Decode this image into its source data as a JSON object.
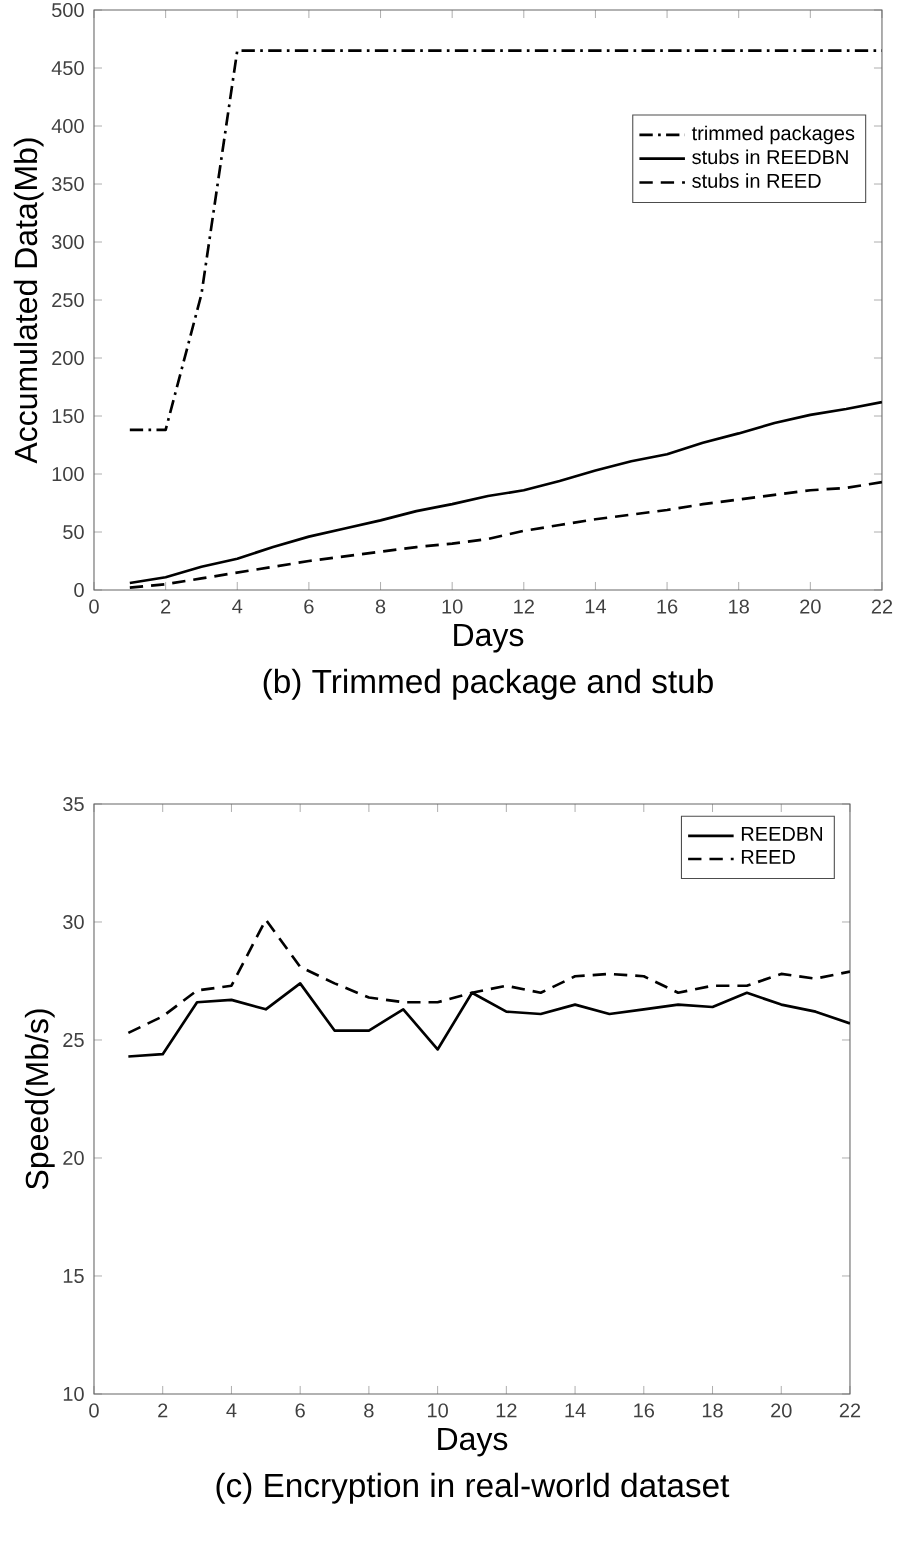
{
  "chart_data": [
    {
      "type": "line",
      "title": "(b) Trimmed package and stub",
      "xlabel": "Days",
      "ylabel": "Accumulated Data(Mb)",
      "x": [
        1,
        2,
        3,
        4,
        5,
        6,
        7,
        8,
        9,
        10,
        11,
        12,
        13,
        14,
        15,
        16,
        17,
        18,
        19,
        20,
        21,
        22
      ],
      "xlim": [
        0,
        22
      ],
      "xticks": [
        0,
        2,
        4,
        6,
        8,
        10,
        12,
        14,
        16,
        18,
        20,
        22
      ],
      "ylim": [
        0,
        500
      ],
      "yticks": [
        0,
        50,
        100,
        150,
        200,
        250,
        300,
        350,
        400,
        450,
        500
      ],
      "legend": "top right",
      "series": [
        {
          "name": "trimmed packages",
          "color": "#000000",
          "line_style": "dashdot",
          "values": [
            138,
            138,
            255,
            465,
            465,
            465,
            465,
            465,
            465,
            465,
            465,
            465,
            465,
            465,
            465,
            465,
            465,
            465,
            465,
            465,
            465,
            465
          ]
        },
        {
          "name": "stubs in REEDBN",
          "color": "#000000",
          "line_style": "solid",
          "values": [
            6,
            11,
            20,
            27,
            37,
            46,
            53,
            60,
            68,
            74,
            81,
            86,
            94,
            103,
            111,
            117,
            127,
            135,
            144,
            151,
            156,
            162
          ]
        },
        {
          "name": "stubs in REED",
          "color": "#000000",
          "line_style": "dashed",
          "values": [
            2,
            5,
            10,
            15,
            20,
            25,
            29,
            33,
            37,
            40,
            44,
            51,
            56,
            61,
            65,
            69,
            74,
            78,
            82,
            86,
            88,
            93
          ]
        }
      ]
    },
    {
      "type": "line",
      "title": "(c)  Encryption in real-world dataset",
      "xlabel": "Days",
      "ylabel": "Speed(Mb/s)",
      "x": [
        1,
        2,
        3,
        4,
        5,
        6,
        7,
        8,
        9,
        10,
        11,
        12,
        13,
        14,
        15,
        16,
        17,
        18,
        19,
        20,
        21,
        22
      ],
      "xlim": [
        0,
        22
      ],
      "xticks": [
        0,
        2,
        4,
        6,
        8,
        10,
        12,
        14,
        16,
        18,
        20,
        22
      ],
      "ylim": [
        10,
        35
      ],
      "yticks": [
        10,
        15,
        20,
        25,
        30,
        35
      ],
      "legend": "top right",
      "series": [
        {
          "name": "REEDBN",
          "color": "#000000",
          "line_style": "solid",
          "values": [
            24.3,
            24.4,
            26.6,
            26.7,
            26.3,
            27.4,
            25.4,
            25.4,
            26.3,
            24.6,
            27.0,
            26.2,
            26.1,
            26.5,
            26.1,
            26.3,
            26.5,
            26.4,
            27.0,
            26.5,
            26.2,
            25.7
          ]
        },
        {
          "name": "REED",
          "color": "#000000",
          "line_style": "dashed",
          "values": [
            25.3,
            26.0,
            27.1,
            27.3,
            30.1,
            28.1,
            27.4,
            26.8,
            26.6,
            26.6,
            27.0,
            27.3,
            27.0,
            27.7,
            27.8,
            27.7,
            27.0,
            27.3,
            27.3,
            27.8,
            27.6,
            27.9
          ]
        }
      ]
    }
  ]
}
